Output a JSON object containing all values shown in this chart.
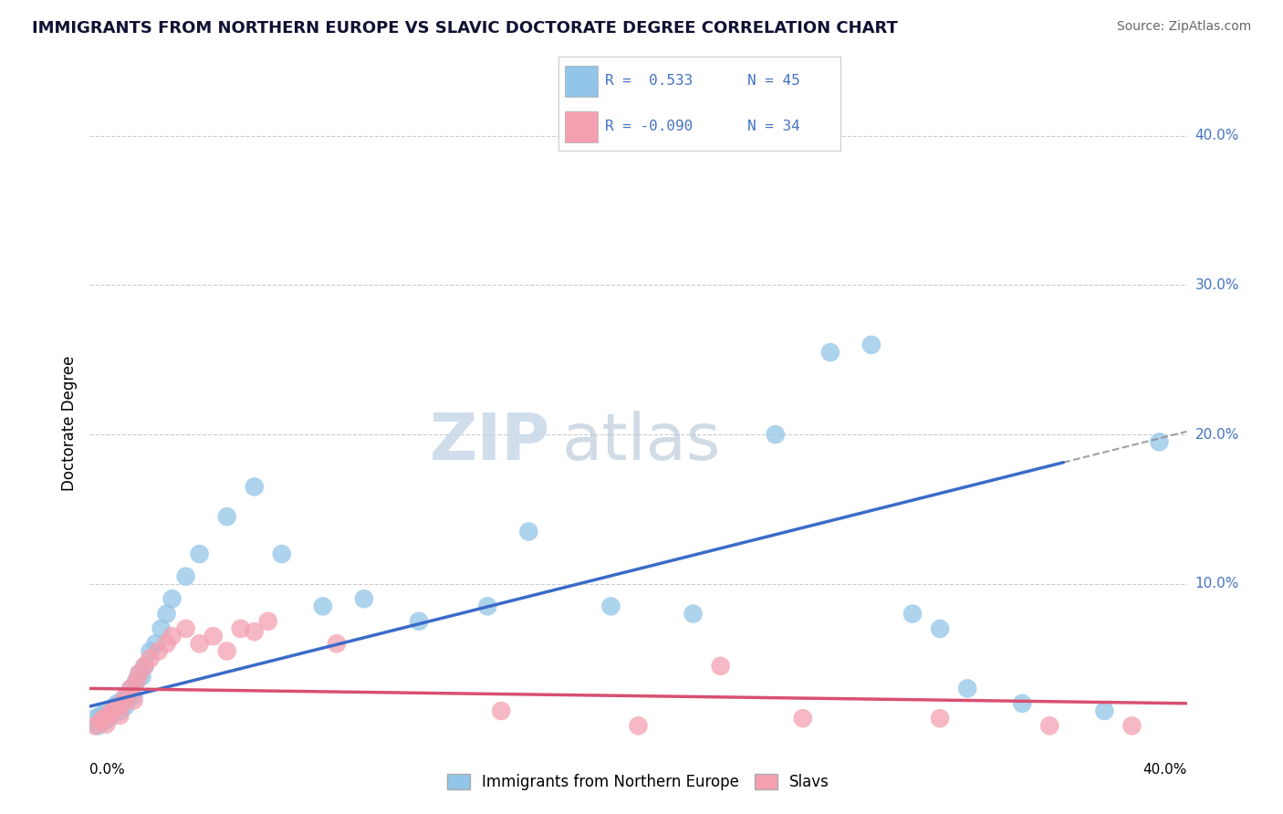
{
  "title": "IMMIGRANTS FROM NORTHERN EUROPE VS SLAVIC DOCTORATE DEGREE CORRELATION CHART",
  "source": "Source: ZipAtlas.com",
  "ylabel": "Doctorate Degree",
  "xlim": [
    0.0,
    0.4
  ],
  "ylim": [
    -0.005,
    0.42
  ],
  "blue_color": "#92C5E8",
  "pink_color": "#F4A0B0",
  "blue_line_color": "#3B6BC8",
  "pink_line_color": "#D85070",
  "label_color": "#4472C4",
  "grid_color": "#CCCCCC",
  "blue_scatter_x": [
    0.002,
    0.003,
    0.004,
    0.005,
    0.006,
    0.007,
    0.008,
    0.009,
    0.01,
    0.011,
    0.012,
    0.013,
    0.014,
    0.015,
    0.016,
    0.017,
    0.018,
    0.019,
    0.02,
    0.022,
    0.024,
    0.026,
    0.028,
    0.03,
    0.035,
    0.04,
    0.05,
    0.06,
    0.07,
    0.085,
    0.1,
    0.12,
    0.145,
    0.16,
    0.19,
    0.22,
    0.25,
    0.27,
    0.285,
    0.3,
    0.31,
    0.32,
    0.34,
    0.37,
    0.39
  ],
  "blue_scatter_y": [
    0.01,
    0.005,
    0.012,
    0.008,
    0.015,
    0.01,
    0.012,
    0.018,
    0.02,
    0.015,
    0.022,
    0.018,
    0.025,
    0.03,
    0.025,
    0.035,
    0.04,
    0.038,
    0.045,
    0.055,
    0.06,
    0.07,
    0.08,
    0.09,
    0.105,
    0.12,
    0.145,
    0.165,
    0.12,
    0.085,
    0.09,
    0.075,
    0.085,
    0.135,
    0.085,
    0.08,
    0.2,
    0.255,
    0.26,
    0.08,
    0.07,
    0.03,
    0.02,
    0.015,
    0.195
  ],
  "pink_scatter_x": [
    0.002,
    0.004,
    0.005,
    0.006,
    0.007,
    0.008,
    0.01,
    0.011,
    0.012,
    0.013,
    0.015,
    0.016,
    0.017,
    0.018,
    0.02,
    0.022,
    0.025,
    0.028,
    0.03,
    0.035,
    0.04,
    0.045,
    0.05,
    0.055,
    0.06,
    0.065,
    0.09,
    0.15,
    0.2,
    0.23,
    0.26,
    0.31,
    0.35,
    0.38
  ],
  "pink_scatter_y": [
    0.005,
    0.008,
    0.01,
    0.006,
    0.012,
    0.015,
    0.018,
    0.012,
    0.02,
    0.025,
    0.03,
    0.022,
    0.035,
    0.04,
    0.045,
    0.05,
    0.055,
    0.06,
    0.065,
    0.07,
    0.06,
    0.065,
    0.055,
    0.07,
    0.068,
    0.075,
    0.06,
    0.015,
    0.005,
    0.045,
    0.01,
    0.01,
    0.005,
    0.005
  ],
  "blue_trend_intercept": 0.018,
  "blue_trend_slope": 0.46,
  "pink_trend_intercept": 0.03,
  "pink_trend_slope": -0.025
}
